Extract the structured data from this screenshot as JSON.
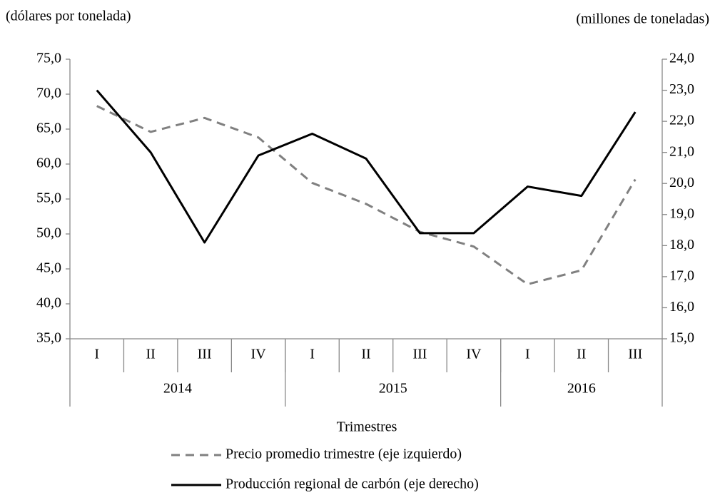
{
  "chart_data": {
    "type": "line",
    "y_label": "(dólares por tonelada)",
    "y2_label": "(millones  de toneladas)",
    "x_label": "Trimestres",
    "categories": [
      "I",
      "II",
      "III",
      "IV",
      "I",
      "II",
      "III",
      "IV",
      "I",
      "II",
      "III"
    ],
    "groups": [
      {
        "label": "2014",
        "size": 4
      },
      {
        "label": "2015",
        "size": 4
      },
      {
        "label": "2016",
        "size": 3
      }
    ],
    "series": [
      {
        "name": "Precio promedio trimestre (eje izquierdo)",
        "color": "#808080",
        "dash": true,
        "axis": "y",
        "values": [
          68.3,
          64.6,
          66.6,
          63.8,
          57.3,
          54.3,
          50.3,
          48.2,
          42.8,
          44.8,
          57.8
        ]
      },
      {
        "name": "Producción regional de carbón (eje derecho)",
        "color": "#000000",
        "dash": false,
        "axis": "y2",
        "values": [
          23.0,
          21.0,
          18.1,
          20.9,
          21.6,
          20.8,
          18.4,
          18.4,
          19.9,
          19.6,
          22.3
        ]
      }
    ],
    "ylim": [
      35,
      75
    ],
    "yticks": [
      {
        "value": 35,
        "label": "35,0"
      },
      {
        "value": 40,
        "label": "40,0"
      },
      {
        "value": 45,
        "label": "45,0"
      },
      {
        "value": 50,
        "label": "50,0"
      },
      {
        "value": 55,
        "label": "55,0"
      },
      {
        "value": 60,
        "label": "60,0"
      },
      {
        "value": 65,
        "label": "65,0"
      },
      {
        "value": 70,
        "label": "70,0"
      },
      {
        "value": 75,
        "label": "75,0"
      }
    ],
    "y2lim": [
      15,
      24
    ],
    "y2ticks": [
      {
        "value": 15,
        "label": "15,0"
      },
      {
        "value": 16,
        "label": "16,0"
      },
      {
        "value": 17,
        "label": "17,0"
      },
      {
        "value": 18,
        "label": "18,0"
      },
      {
        "value": 19,
        "label": "19,0"
      },
      {
        "value": 20,
        "label": "20,0"
      },
      {
        "value": 21,
        "label": "21,0"
      },
      {
        "value": 22,
        "label": "22,0"
      },
      {
        "value": 23,
        "label": "23,0"
      },
      {
        "value": 24,
        "label": "24,0"
      }
    ]
  }
}
